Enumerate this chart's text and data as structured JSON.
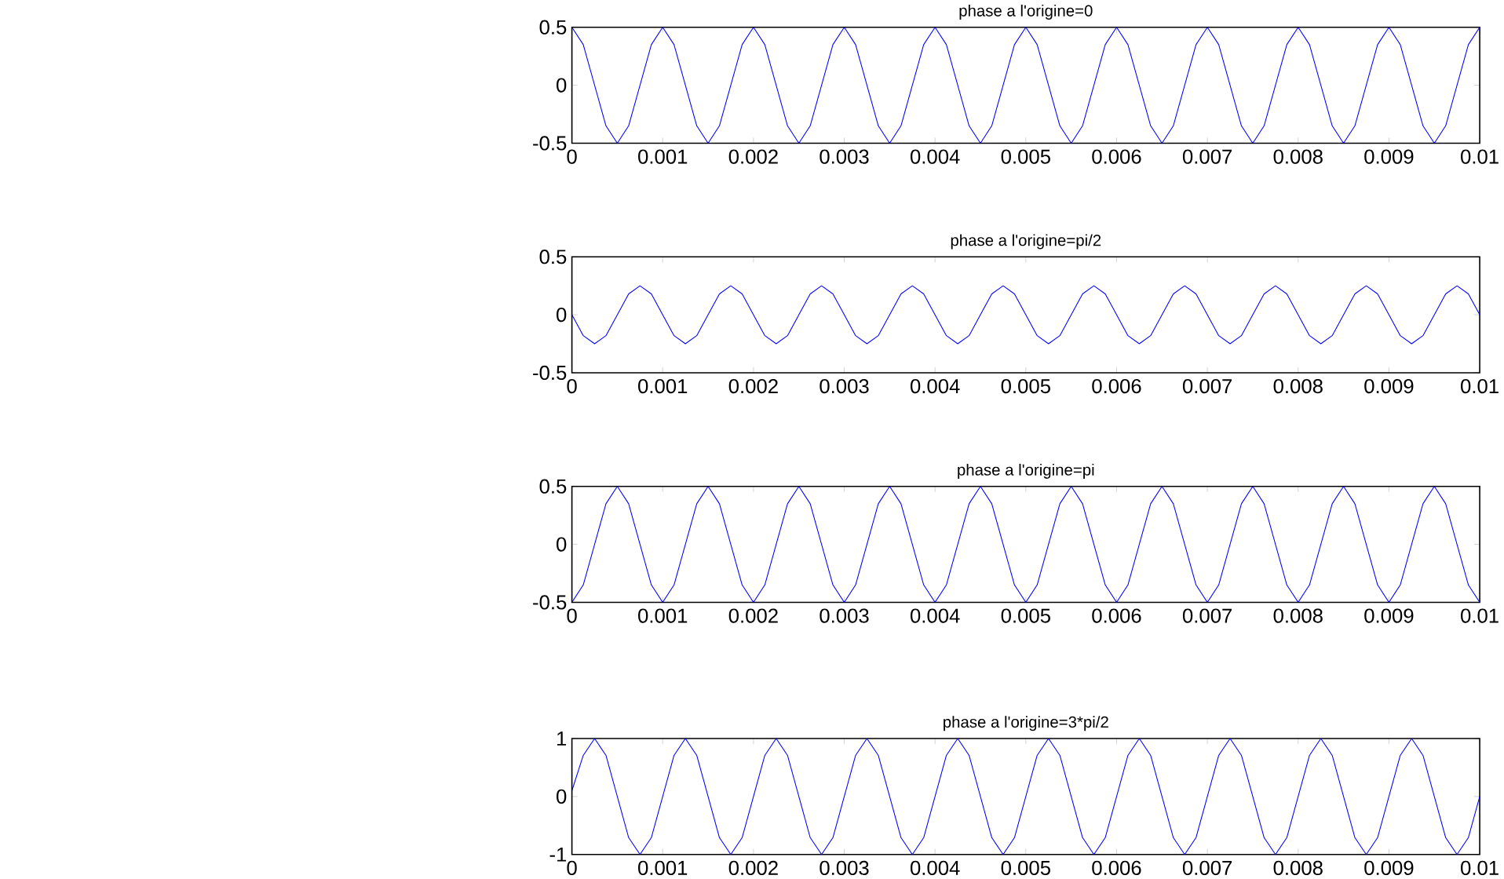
{
  "chart_data": [
    {
      "type": "line",
      "title": "phase a l'origine=0",
      "color": "#0000ff",
      "xlim": [
        0,
        0.01
      ],
      "ylim": [
        -0.5,
        0.5
      ],
      "xticks": [
        0,
        0.001,
        0.002,
        0.003,
        0.004,
        0.005,
        0.006,
        0.007,
        0.008,
        0.009,
        0.01
      ],
      "yticks": [
        -0.5,
        0,
        0.5
      ],
      "x": [
        0,
        0.000125,
        0.00025,
        0.000375,
        0.0005,
        0.000625,
        0.00075,
        0.000875,
        0.001,
        0.001125,
        0.00125,
        0.001375,
        0.0015,
        0.001625,
        0.00175,
        0.001875,
        0.002,
        0.002125,
        0.00225,
        0.002375,
        0.0025,
        0.002625,
        0.00275,
        0.002875,
        0.003,
        0.003125,
        0.00325,
        0.003375,
        0.0035,
        0.003625,
        0.00375,
        0.003875,
        0.004,
        0.004125,
        0.00425,
        0.004375,
        0.0045,
        0.004625,
        0.00475,
        0.004875,
        0.005,
        0.005125,
        0.00525,
        0.005375,
        0.0055,
        0.005625,
        0.00575,
        0.005875,
        0.006,
        0.006125,
        0.00625,
        0.006375,
        0.0065,
        0.006625,
        0.00675,
        0.006875,
        0.007,
        0.007125,
        0.00725,
        0.007375,
        0.0075,
        0.007625,
        0.00775,
        0.007875,
        0.008,
        0.008125,
        0.00825,
        0.008375,
        0.0085,
        0.008625,
        0.00875,
        0.008875,
        0.009,
        0.009125,
        0.00925,
        0.009375,
        0.0095,
        0.009625,
        0.00975,
        0.009875,
        0.01
      ],
      "values": [
        0.5,
        0.35,
        0,
        -0.35,
        -0.5,
        -0.35,
        0,
        0.35,
        0.5,
        0.35,
        0,
        -0.35,
        -0.5,
        -0.35,
        0,
        0.35,
        0.5,
        0.35,
        0,
        -0.35,
        -0.5,
        -0.35,
        0,
        0.35,
        0.5,
        0.35,
        0,
        -0.35,
        -0.5,
        -0.35,
        0,
        0.35,
        0.5,
        0.35,
        0,
        -0.35,
        -0.5,
        -0.35,
        0,
        0.35,
        0.5,
        0.35,
        0,
        -0.35,
        -0.5,
        -0.35,
        0,
        0.35,
        0.5,
        0.35,
        0,
        -0.35,
        -0.5,
        -0.35,
        0,
        0.35,
        0.5,
        0.35,
        0,
        -0.35,
        -0.5,
        -0.35,
        0,
        0.35,
        0.5,
        0.35,
        0,
        -0.35,
        -0.5,
        -0.35,
        0,
        0.35,
        0.5,
        0.35,
        0,
        -0.35,
        -0.5,
        -0.35,
        0,
        0.35,
        0.5
      ]
    },
    {
      "type": "line",
      "title": "phase a l'origine=pi/2",
      "color": "#0000ff",
      "xlim": [
        0,
        0.01
      ],
      "ylim": [
        -0.5,
        0.5
      ],
      "xticks": [
        0,
        0.001,
        0.002,
        0.003,
        0.004,
        0.005,
        0.006,
        0.007,
        0.008,
        0.009,
        0.01
      ],
      "yticks": [
        -0.5,
        0,
        0.5
      ],
      "x": [
        0,
        0.000125,
        0.00025,
        0.000375,
        0.0005,
        0.000625,
        0.00075,
        0.000875,
        0.001,
        0.001125,
        0.00125,
        0.001375,
        0.0015,
        0.001625,
        0.00175,
        0.001875,
        0.002,
        0.002125,
        0.00225,
        0.002375,
        0.0025,
        0.002625,
        0.00275,
        0.002875,
        0.003,
        0.003125,
        0.00325,
        0.003375,
        0.0035,
        0.003625,
        0.00375,
        0.003875,
        0.004,
        0.004125,
        0.00425,
        0.004375,
        0.0045,
        0.004625,
        0.00475,
        0.004875,
        0.005,
        0.005125,
        0.00525,
        0.005375,
        0.0055,
        0.005625,
        0.00575,
        0.005875,
        0.006,
        0.006125,
        0.00625,
        0.006375,
        0.0065,
        0.006625,
        0.00675,
        0.006875,
        0.007,
        0.007125,
        0.00725,
        0.007375,
        0.0075,
        0.007625,
        0.00775,
        0.007875,
        0.008,
        0.008125,
        0.00825,
        0.008375,
        0.0085,
        0.008625,
        0.00875,
        0.008875,
        0.009,
        0.009125,
        0.00925,
        0.009375,
        0.0095,
        0.009625,
        0.00975,
        0.009875,
        0.01
      ],
      "values": [
        0,
        -0.18,
        -0.25,
        -0.18,
        0,
        0.18,
        0.25,
        0.18,
        0,
        -0.18,
        -0.25,
        -0.18,
        0,
        0.18,
        0.25,
        0.18,
        0,
        -0.18,
        -0.25,
        -0.18,
        0,
        0.18,
        0.25,
        0.18,
        0,
        -0.18,
        -0.25,
        -0.18,
        0,
        0.18,
        0.25,
        0.18,
        0,
        -0.18,
        -0.25,
        -0.18,
        0,
        0.18,
        0.25,
        0.18,
        0,
        -0.18,
        -0.25,
        -0.18,
        0,
        0.18,
        0.25,
        0.18,
        0,
        -0.18,
        -0.25,
        -0.18,
        0,
        0.18,
        0.25,
        0.18,
        0,
        -0.18,
        -0.25,
        -0.18,
        0,
        0.18,
        0.25,
        0.18,
        0,
        -0.18,
        -0.25,
        -0.18,
        0,
        0.18,
        0.25,
        0.18,
        0,
        -0.18,
        -0.25,
        -0.18,
        0,
        0.18,
        0.25,
        0.18,
        0
      ]
    },
    {
      "type": "line",
      "title": "phase a l'origine=pi",
      "color": "#0000ff",
      "xlim": [
        0,
        0.01
      ],
      "ylim": [
        -0.5,
        0.5
      ],
      "xticks": [
        0,
        0.001,
        0.002,
        0.003,
        0.004,
        0.005,
        0.006,
        0.007,
        0.008,
        0.009,
        0.01
      ],
      "yticks": [
        -0.5,
        0,
        0.5
      ],
      "x": [
        0,
        0.000125,
        0.00025,
        0.000375,
        0.0005,
        0.000625,
        0.00075,
        0.000875,
        0.001,
        0.001125,
        0.00125,
        0.001375,
        0.0015,
        0.001625,
        0.00175,
        0.001875,
        0.002,
        0.002125,
        0.00225,
        0.002375,
        0.0025,
        0.002625,
        0.00275,
        0.002875,
        0.003,
        0.003125,
        0.00325,
        0.003375,
        0.0035,
        0.003625,
        0.00375,
        0.003875,
        0.004,
        0.004125,
        0.00425,
        0.004375,
        0.0045,
        0.004625,
        0.00475,
        0.004875,
        0.005,
        0.005125,
        0.00525,
        0.005375,
        0.0055,
        0.005625,
        0.00575,
        0.005875,
        0.006,
        0.006125,
        0.00625,
        0.006375,
        0.0065,
        0.006625,
        0.00675,
        0.006875,
        0.007,
        0.007125,
        0.00725,
        0.007375,
        0.0075,
        0.007625,
        0.00775,
        0.007875,
        0.008,
        0.008125,
        0.00825,
        0.008375,
        0.0085,
        0.008625,
        0.00875,
        0.008875,
        0.009,
        0.009125,
        0.00925,
        0.009375,
        0.0095,
        0.009625,
        0.00975,
        0.009875,
        0.01
      ],
      "values": [
        -0.5,
        -0.35,
        0,
        0.35,
        0.5,
        0.35,
        0,
        -0.35,
        -0.5,
        -0.35,
        0,
        0.35,
        0.5,
        0.35,
        0,
        -0.35,
        -0.5,
        -0.35,
        0,
        0.35,
        0.5,
        0.35,
        0,
        -0.35,
        -0.5,
        -0.35,
        0,
        0.35,
        0.5,
        0.35,
        0,
        -0.35,
        -0.5,
        -0.35,
        0,
        0.35,
        0.5,
        0.35,
        0,
        -0.35,
        -0.5,
        -0.35,
        0,
        0.35,
        0.5,
        0.35,
        0,
        -0.35,
        -0.5,
        -0.35,
        0,
        0.35,
        0.5,
        0.35,
        0,
        -0.35,
        -0.5,
        -0.35,
        0,
        0.35,
        0.5,
        0.35,
        0,
        -0.35,
        -0.5,
        -0.35,
        0,
        0.35,
        0.5,
        0.35,
        0,
        -0.35,
        -0.5,
        -0.35,
        0,
        0.35,
        0.5,
        0.35,
        0,
        -0.35,
        -0.5
      ]
    },
    {
      "type": "line",
      "title": "phase a l'origine=3*pi/2",
      "color": "#0000ff",
      "xlim": [
        0,
        0.01
      ],
      "ylim": [
        -1,
        1
      ],
      "xticks": [
        0,
        0.001,
        0.002,
        0.003,
        0.004,
        0.005,
        0.006,
        0.007,
        0.008,
        0.009,
        0.01
      ],
      "yticks": [
        -1,
        0,
        1
      ],
      "x": [
        0,
        0.000125,
        0.00025,
        0.000375,
        0.0005,
        0.000625,
        0.00075,
        0.000875,
        0.001,
        0.001125,
        0.00125,
        0.001375,
        0.0015,
        0.001625,
        0.00175,
        0.001875,
        0.002,
        0.002125,
        0.00225,
        0.002375,
        0.0025,
        0.002625,
        0.00275,
        0.002875,
        0.003,
        0.003125,
        0.00325,
        0.003375,
        0.0035,
        0.003625,
        0.00375,
        0.003875,
        0.004,
        0.004125,
        0.00425,
        0.004375,
        0.0045,
        0.004625,
        0.00475,
        0.004875,
        0.005,
        0.005125,
        0.00525,
        0.005375,
        0.0055,
        0.005625,
        0.00575,
        0.005875,
        0.006,
        0.006125,
        0.00625,
        0.006375,
        0.0065,
        0.006625,
        0.00675,
        0.006875,
        0.007,
        0.007125,
        0.00725,
        0.007375,
        0.0075,
        0.007625,
        0.00775,
        0.007875,
        0.008,
        0.008125,
        0.00825,
        0.008375,
        0.0085,
        0.008625,
        0.00875,
        0.008875,
        0.009,
        0.009125,
        0.00925,
        0.009375,
        0.0095,
        0.009625,
        0.00975,
        0.009875,
        0.01
      ],
      "values": [
        0.1,
        0.71,
        1,
        0.71,
        0,
        -0.71,
        -1,
        -0.71,
        0,
        0.71,
        1,
        0.71,
        0,
        -0.71,
        -1,
        -0.71,
        0,
        0.71,
        1,
        0.71,
        0,
        -0.71,
        -1,
        -0.71,
        0,
        0.71,
        1,
        0.71,
        0,
        -0.71,
        -1,
        -0.71,
        0,
        0.71,
        1,
        0.71,
        0,
        -0.71,
        -1,
        -0.71,
        0,
        0.71,
        1,
        0.71,
        0,
        -0.71,
        -1,
        -0.71,
        0,
        0.71,
        1,
        0.71,
        0,
        -0.71,
        -1,
        -0.71,
        0,
        0.71,
        1,
        0.71,
        0,
        -0.71,
        -1,
        -0.71,
        0,
        0.71,
        1,
        0.71,
        0,
        -0.71,
        -1,
        -0.71,
        0,
        0.71,
        1,
        0.71,
        0,
        -0.71,
        -1,
        -0.71,
        0
      ]
    }
  ]
}
